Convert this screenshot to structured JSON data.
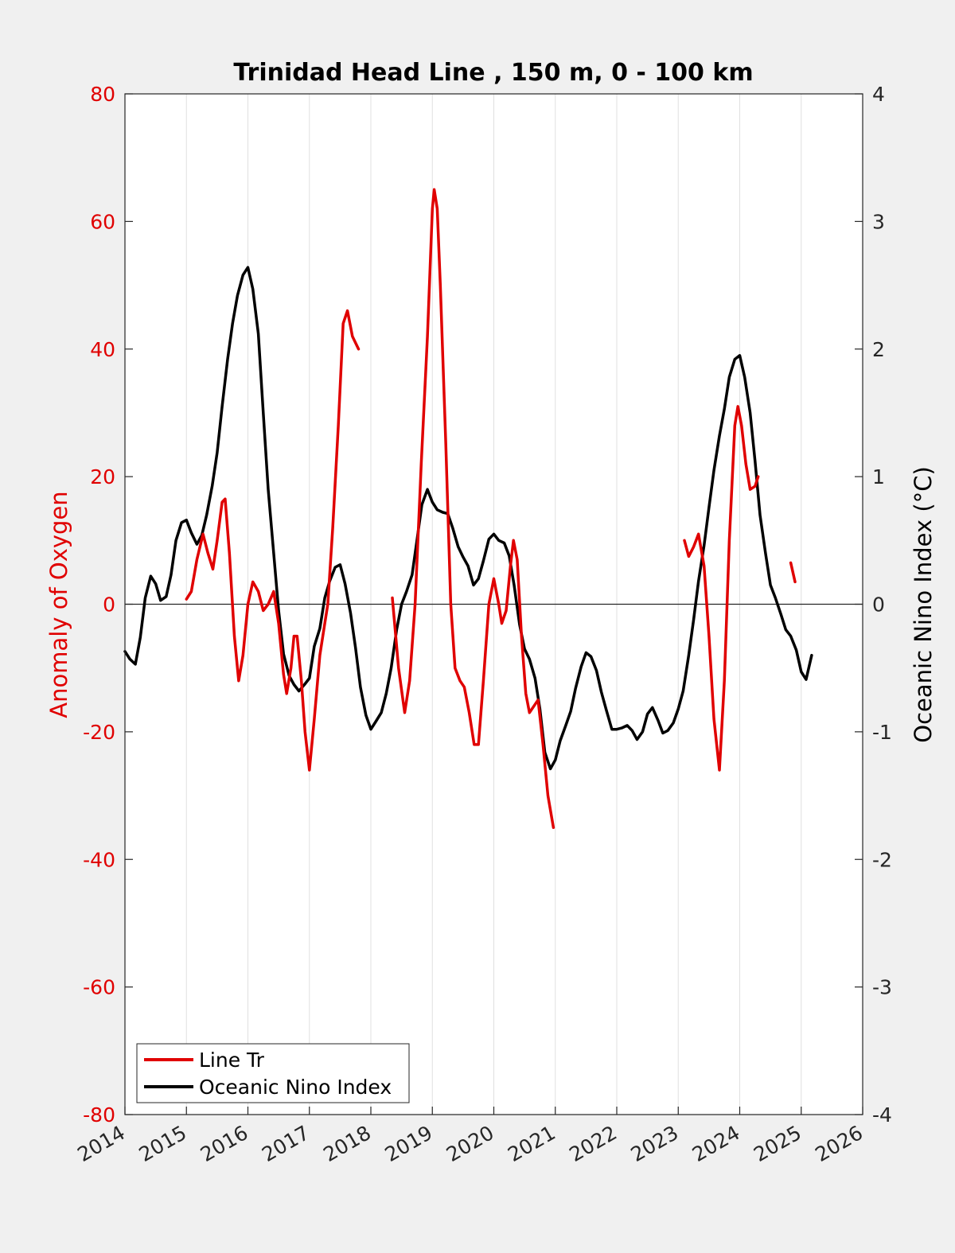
{
  "colors": {
    "left": "#e00000",
    "right": "#000000",
    "frame": "#262626",
    "grid": "#e0e0e0",
    "background": "#f0f0f0"
  },
  "chart_data": {
    "type": "line",
    "title": "Trinidad Head Line , 150 m, 0 - 100 km",
    "xlabel": "",
    "xlim": [
      2014,
      2026
    ],
    "xticks": [
      "2014",
      "2015",
      "2016",
      "2017",
      "2018",
      "2019",
      "2020",
      "2021",
      "2022",
      "2023",
      "2024",
      "2025",
      "2026"
    ],
    "grid": "vertical",
    "legend_position": "bottom-left",
    "left_axis": {
      "label": "Anomaly of Oxygen",
      "ylim": [
        -80,
        80
      ],
      "ticks": [
        "80",
        "60",
        "40",
        "20",
        "0",
        "-20",
        "-40",
        "-60",
        "-80"
      ]
    },
    "right_axis": {
      "label": "Oceanic Nino Index (°C)",
      "ylim": [
        -4,
        4
      ],
      "ticks": [
        "4",
        "3",
        "2",
        "1",
        "0",
        "-1",
        "-2",
        "-3",
        "-4"
      ]
    },
    "series": [
      {
        "name": "Line Tr",
        "axis": "left",
        "color": "#e00000",
        "segments": [
          [
            [
              2015.0,
              0.8
            ],
            [
              2015.08,
              2
            ],
            [
              2015.17,
              7
            ],
            [
              2015.27,
              11
            ],
            [
              2015.35,
              8
            ],
            [
              2015.43,
              5.5
            ],
            [
              2015.5,
              10
            ],
            [
              2015.58,
              16
            ],
            [
              2015.63,
              16.5
            ],
            [
              2015.7,
              8
            ],
            [
              2015.78,
              -5
            ],
            [
              2015.85,
              -12
            ],
            [
              2015.92,
              -8
            ],
            [
              2016.0,
              0
            ],
            [
              2016.08,
              3.5
            ],
            [
              2016.17,
              2
            ],
            [
              2016.25,
              -1
            ],
            [
              2016.33,
              0
            ],
            [
              2016.42,
              2
            ],
            [
              2016.5,
              -3
            ],
            [
              2016.58,
              -11
            ],
            [
              2016.63,
              -14
            ],
            [
              2016.7,
              -10
            ],
            [
              2016.75,
              -5
            ],
            [
              2016.8,
              -5
            ],
            [
              2016.87,
              -12
            ],
            [
              2016.93,
              -20
            ],
            [
              2017.0,
              -26
            ],
            [
              2017.08,
              -18
            ],
            [
              2017.17,
              -8
            ],
            [
              2017.25,
              -3
            ],
            [
              2017.3,
              0
            ],
            [
              2017.38,
              12
            ],
            [
              2017.47,
              28
            ],
            [
              2017.55,
              44
            ],
            [
              2017.62,
              46
            ],
            [
              2017.7,
              42
            ],
            [
              2017.8,
              40
            ]
          ],
          [
            [
              2018.35,
              1
            ],
            [
              2018.45,
              -10
            ],
            [
              2018.55,
              -17
            ],
            [
              2018.63,
              -12
            ],
            [
              2018.72,
              0
            ],
            [
              2018.82,
              22
            ],
            [
              2018.92,
              42
            ],
            [
              2019.0,
              62
            ],
            [
              2019.03,
              65
            ],
            [
              2019.08,
              62
            ],
            [
              2019.13,
              50
            ],
            [
              2019.22,
              25
            ],
            [
              2019.3,
              0
            ],
            [
              2019.37,
              -10
            ],
            [
              2019.45,
              -12
            ],
            [
              2019.52,
              -13
            ],
            [
              2019.6,
              -17
            ],
            [
              2019.68,
              -22
            ],
            [
              2019.75,
              -22
            ],
            [
              2019.83,
              -12
            ],
            [
              2019.92,
              0
            ],
            [
              2020.0,
              4
            ],
            [
              2020.08,
              0
            ],
            [
              2020.13,
              -3
            ],
            [
              2020.2,
              -1
            ],
            [
              2020.27,
              6
            ],
            [
              2020.32,
              10
            ],
            [
              2020.38,
              7
            ],
            [
              2020.45,
              -5
            ],
            [
              2020.52,
              -14
            ],
            [
              2020.58,
              -17
            ],
            [
              2020.65,
              -16
            ],
            [
              2020.72,
              -15
            ],
            [
              2020.8,
              -22
            ],
            [
              2020.88,
              -30
            ],
            [
              2020.97,
              -35
            ]
          ],
          [
            [
              2023.1,
              10
            ],
            [
              2023.17,
              7.5
            ],
            [
              2023.25,
              9
            ],
            [
              2023.33,
              11
            ],
            [
              2023.42,
              6
            ],
            [
              2023.5,
              -5
            ],
            [
              2023.58,
              -18
            ],
            [
              2023.67,
              -26
            ],
            [
              2023.75,
              -12
            ],
            [
              2023.83,
              10
            ],
            [
              2023.92,
              28
            ],
            [
              2023.97,
              31
            ],
            [
              2024.03,
              28
            ],
            [
              2024.1,
              22
            ],
            [
              2024.17,
              18
            ],
            [
              2024.25,
              18.5
            ],
            [
              2024.3,
              20
            ]
          ],
          [
            [
              2024.83,
              6.5
            ],
            [
              2024.9,
              3.5
            ]
          ]
        ]
      },
      {
        "name": "Oceanic Nino Index",
        "axis": "right",
        "color": "#000000",
        "segments": [
          [
            [
              2014.0,
              -0.37
            ],
            [
              2014.08,
              -0.43
            ],
            [
              2014.17,
              -0.47
            ],
            [
              2014.25,
              -0.26
            ],
            [
              2014.33,
              0.05
            ],
            [
              2014.42,
              0.22
            ],
            [
              2014.5,
              0.16
            ],
            [
              2014.58,
              0.03
            ],
            [
              2014.67,
              0.06
            ],
            [
              2014.75,
              0.23
            ],
            [
              2014.83,
              0.5
            ],
            [
              2014.92,
              0.64
            ],
            [
              2015.0,
              0.66
            ],
            [
              2015.08,
              0.56
            ],
            [
              2015.17,
              0.47
            ],
            [
              2015.25,
              0.54
            ],
            [
              2015.33,
              0.7
            ],
            [
              2015.42,
              0.93
            ],
            [
              2015.5,
              1.19
            ],
            [
              2015.58,
              1.55
            ],
            [
              2015.67,
              1.92
            ],
            [
              2015.75,
              2.2
            ],
            [
              2015.83,
              2.42
            ],
            [
              2015.92,
              2.58
            ],
            [
              2016.0,
              2.64
            ],
            [
              2016.08,
              2.47
            ],
            [
              2016.17,
              2.12
            ],
            [
              2016.25,
              1.5
            ],
            [
              2016.33,
              0.9
            ],
            [
              2016.42,
              0.4
            ],
            [
              2016.5,
              -0.05
            ],
            [
              2016.58,
              -0.39
            ],
            [
              2016.67,
              -0.56
            ],
            [
              2016.75,
              -0.63
            ],
            [
              2016.83,
              -0.68
            ],
            [
              2016.92,
              -0.63
            ],
            [
              2017.0,
              -0.58
            ],
            [
              2017.08,
              -0.33
            ],
            [
              2017.17,
              -0.19
            ],
            [
              2017.25,
              0.05
            ],
            [
              2017.33,
              0.18
            ],
            [
              2017.42,
              0.29
            ],
            [
              2017.5,
              0.31
            ],
            [
              2017.58,
              0.16
            ],
            [
              2017.67,
              -0.07
            ],
            [
              2017.75,
              -0.34
            ],
            [
              2017.83,
              -0.65
            ],
            [
              2017.92,
              -0.87
            ],
            [
              2018.0,
              -0.98
            ],
            [
              2018.08,
              -0.92
            ],
            [
              2018.17,
              -0.85
            ],
            [
              2018.25,
              -0.7
            ],
            [
              2018.33,
              -0.5
            ],
            [
              2018.42,
              -0.2
            ],
            [
              2018.5,
              0.0
            ],
            [
              2018.58,
              0.1
            ],
            [
              2018.67,
              0.23
            ],
            [
              2018.75,
              0.5
            ],
            [
              2018.83,
              0.78
            ],
            [
              2018.92,
              0.9
            ],
            [
              2019.0,
              0.8
            ],
            [
              2019.08,
              0.74
            ],
            [
              2019.17,
              0.72
            ],
            [
              2019.25,
              0.71
            ],
            [
              2019.33,
              0.6
            ],
            [
              2019.42,
              0.45
            ],
            [
              2019.5,
              0.37
            ],
            [
              2019.58,
              0.3
            ],
            [
              2019.67,
              0.15
            ],
            [
              2019.75,
              0.2
            ],
            [
              2019.83,
              0.34
            ],
            [
              2019.92,
              0.51
            ],
            [
              2020.0,
              0.55
            ],
            [
              2020.08,
              0.5
            ],
            [
              2020.17,
              0.48
            ],
            [
              2020.25,
              0.38
            ],
            [
              2020.33,
              0.15
            ],
            [
              2020.42,
              -0.16
            ],
            [
              2020.5,
              -0.35
            ],
            [
              2020.58,
              -0.43
            ],
            [
              2020.67,
              -0.58
            ],
            [
              2020.75,
              -0.82
            ],
            [
              2020.83,
              -1.16
            ],
            [
              2020.92,
              -1.29
            ],
            [
              2021.0,
              -1.22
            ],
            [
              2021.08,
              -1.07
            ],
            [
              2021.17,
              -0.95
            ],
            [
              2021.25,
              -0.84
            ],
            [
              2021.33,
              -0.66
            ],
            [
              2021.42,
              -0.49
            ],
            [
              2021.5,
              -0.38
            ],
            [
              2021.58,
              -0.41
            ],
            [
              2021.67,
              -0.52
            ],
            [
              2021.75,
              -0.69
            ],
            [
              2021.83,
              -0.83
            ],
            [
              2021.92,
              -0.98
            ],
            [
              2022.0,
              -0.98
            ],
            [
              2022.08,
              -0.97
            ],
            [
              2022.17,
              -0.95
            ],
            [
              2022.25,
              -0.99
            ],
            [
              2022.33,
              -1.06
            ],
            [
              2022.42,
              -1.0
            ],
            [
              2022.5,
              -0.86
            ],
            [
              2022.58,
              -0.81
            ],
            [
              2022.67,
              -0.91
            ],
            [
              2022.75,
              -1.01
            ],
            [
              2022.83,
              -0.99
            ],
            [
              2022.92,
              -0.93
            ],
            [
              2023.0,
              -0.82
            ],
            [
              2023.08,
              -0.68
            ],
            [
              2023.17,
              -0.4
            ],
            [
              2023.25,
              -0.12
            ],
            [
              2023.33,
              0.18
            ],
            [
              2023.42,
              0.46
            ],
            [
              2023.5,
              0.76
            ],
            [
              2023.58,
              1.05
            ],
            [
              2023.67,
              1.32
            ],
            [
              2023.75,
              1.53
            ],
            [
              2023.83,
              1.78
            ],
            [
              2023.92,
              1.92
            ],
            [
              2024.0,
              1.95
            ],
            [
              2024.08,
              1.78
            ],
            [
              2024.17,
              1.5
            ],
            [
              2024.25,
              1.12
            ],
            [
              2024.33,
              0.7
            ],
            [
              2024.42,
              0.4
            ],
            [
              2024.5,
              0.15
            ],
            [
              2024.58,
              0.05
            ],
            [
              2024.67,
              -0.08
            ],
            [
              2024.75,
              -0.2
            ],
            [
              2024.83,
              -0.25
            ],
            [
              2024.92,
              -0.36
            ],
            [
              2025.0,
              -0.53
            ],
            [
              2025.08,
              -0.59
            ],
            [
              2025.17,
              -0.4
            ]
          ]
        ]
      }
    ]
  }
}
